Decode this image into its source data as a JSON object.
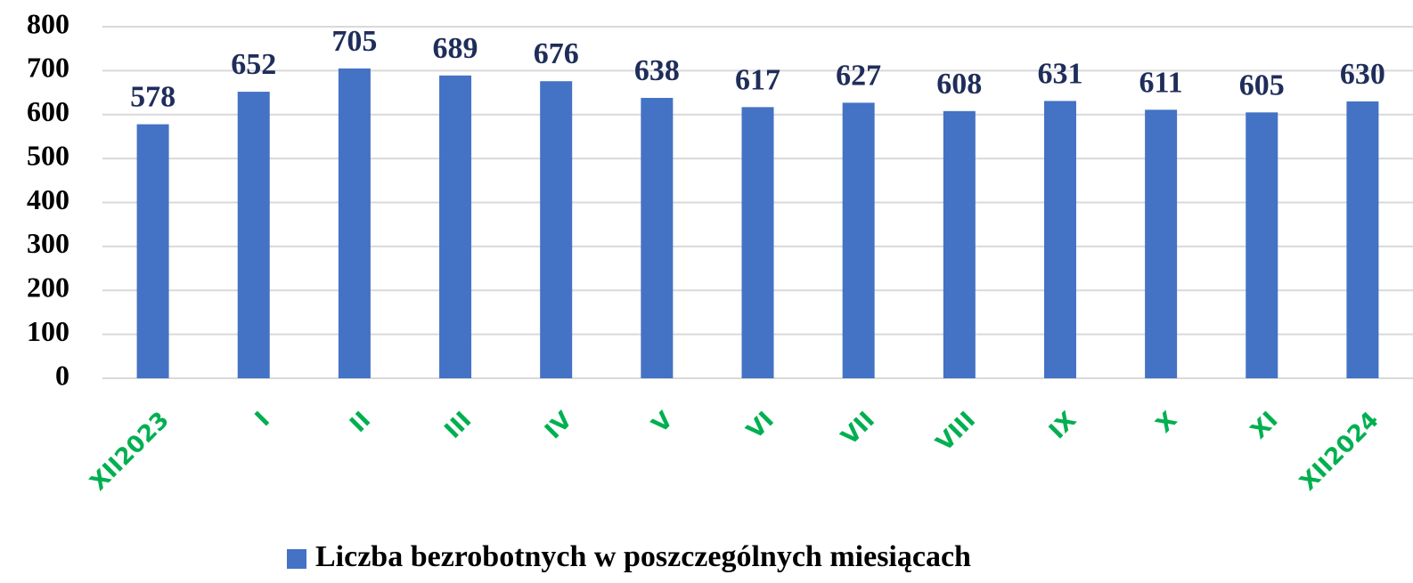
{
  "chart_data": {
    "type": "bar",
    "categories": [
      "XII2023",
      "I",
      "II",
      "III",
      "IV",
      "V",
      "VI",
      "VII",
      "VIII",
      "IX",
      "X",
      "XI",
      "XII2024"
    ],
    "series": [
      {
        "name": "Liczba bezrobotnych w poszczególnych miesiącach",
        "color": "#4472c4",
        "values": [
          578,
          652,
          705,
          689,
          676,
          638,
          617,
          627,
          608,
          631,
          611,
          605,
          630
        ]
      }
    ],
    "ylim": [
      0,
      800
    ],
    "yticks": [
      0,
      100,
      200,
      300,
      400,
      500,
      600,
      700,
      800
    ],
    "grid": true,
    "legend": "bottom"
  }
}
